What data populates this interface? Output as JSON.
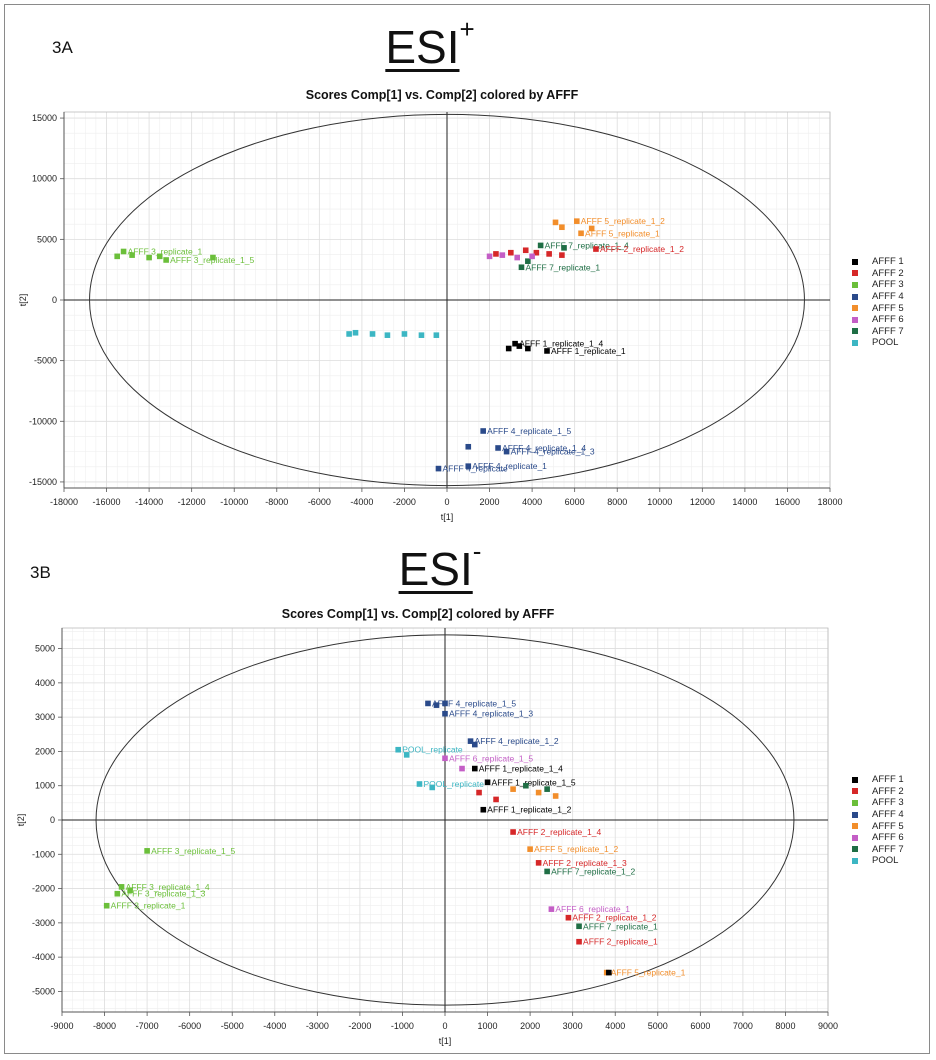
{
  "panels": [
    {
      "panel_label": "3A",
      "heading_main": "ESI",
      "heading_sup": "+",
      "legend": [
        {
          "label": "AFFF 1",
          "color": "#000000"
        },
        {
          "label": "AFFF 2",
          "color": "#d62728"
        },
        {
          "label": "AFFF 3",
          "color": "#6bbf3a"
        },
        {
          "label": "AFFF 4",
          "color": "#2a4a8a"
        },
        {
          "label": "AFFF 5",
          "color": "#f28e2b"
        },
        {
          "label": "AFFF 6",
          "color": "#c45ec6"
        },
        {
          "label": "AFFF 7",
          "color": "#1f6e45"
        },
        {
          "label": "POOL",
          "color": "#3cb6c3"
        }
      ]
    },
    {
      "panel_label": "3B",
      "heading_main": "ESI",
      "heading_sup": "-",
      "legend": [
        {
          "label": "AFFF 1",
          "color": "#000000"
        },
        {
          "label": "AFFF 2",
          "color": "#d62728"
        },
        {
          "label": "AFFF 3",
          "color": "#6bbf3a"
        },
        {
          "label": "AFFF 4",
          "color": "#2a4a8a"
        },
        {
          "label": "AFFF 5",
          "color": "#f28e2b"
        },
        {
          "label": "AFFF 6",
          "color": "#c45ec6"
        },
        {
          "label": "AFFF 7",
          "color": "#1f6e45"
        },
        {
          "label": "POOL",
          "color": "#3cb6c3"
        }
      ]
    }
  ],
  "chart_data": [
    {
      "type": "scatter",
      "title": "Scores Comp[1] vs. Comp[2] colored by AFFF",
      "xlabel": "t[1]",
      "ylabel": "t[2]",
      "xlim": [
        -18000,
        18000
      ],
      "ylim": [
        -15500,
        15500
      ],
      "xticks": [
        -18000,
        -16000,
        -14000,
        -12000,
        -10000,
        -8000,
        -6000,
        -4000,
        -2000,
        0,
        2000,
        4000,
        6000,
        8000,
        10000,
        12000,
        14000,
        16000,
        18000
      ],
      "yticks": [
        -15000,
        -10000,
        -5000,
        0,
        5000,
        10000,
        15000
      ],
      "ellipse": {
        "rx": 16800,
        "ry": 15300
      },
      "grid": true,
      "legend_position": "right",
      "points": [
        {
          "group": "AFFF 3",
          "x": -15200,
          "y": 4000,
          "label": "AFFF 3_replicate_1"
        },
        {
          "group": "AFFF 3",
          "x": -15500,
          "y": 3600,
          "label": ""
        },
        {
          "group": "AFFF 3",
          "x": -14800,
          "y": 3700,
          "label": ""
        },
        {
          "group": "AFFF 3",
          "x": -14000,
          "y": 3500,
          "label": ""
        },
        {
          "group": "AFFF 3",
          "x": -13500,
          "y": 3600,
          "label": ""
        },
        {
          "group": "AFFF 3",
          "x": -11000,
          "y": 3500,
          "label": ""
        },
        {
          "group": "AFFF 3",
          "x": -13200,
          "y": 3300,
          "label": "AFFF 3_replicate_1_5"
        },
        {
          "group": "POOL",
          "x": -4600,
          "y": -2800,
          "label": ""
        },
        {
          "group": "POOL",
          "x": -4300,
          "y": -2700,
          "label": ""
        },
        {
          "group": "POOL",
          "x": -3500,
          "y": -2800,
          "label": ""
        },
        {
          "group": "POOL",
          "x": -2800,
          "y": -2900,
          "label": ""
        },
        {
          "group": "POOL",
          "x": -2000,
          "y": -2800,
          "label": ""
        },
        {
          "group": "POOL",
          "x": -1200,
          "y": -2900,
          "label": ""
        },
        {
          "group": "POOL",
          "x": -500,
          "y": -2900,
          "label": ""
        },
        {
          "group": "AFFF 1",
          "x": 2900,
          "y": -4000,
          "label": ""
        },
        {
          "group": "AFFF 1",
          "x": 3200,
          "y": -3600,
          "label": "AFFF 1_replicate_1_4"
        },
        {
          "group": "AFFF 1",
          "x": 3400,
          "y": -3800,
          "label": ""
        },
        {
          "group": "AFFF 1",
          "x": 3800,
          "y": -4000,
          "label": ""
        },
        {
          "group": "AFFF 1",
          "x": 4700,
          "y": -4200,
          "label": "AFFF 1_replicate_1"
        },
        {
          "group": "AFFF 4",
          "x": 1700,
          "y": -10800,
          "label": "AFFF 4_replicate_1_5"
        },
        {
          "group": "AFFF 4",
          "x": 1000,
          "y": -12100,
          "label": ""
        },
        {
          "group": "AFFF 4",
          "x": 2400,
          "y": -12200,
          "label": "AFFF 4_replicate_1_4"
        },
        {
          "group": "AFFF 4",
          "x": 2800,
          "y": -12500,
          "label": "AFFF 4_replicate_1_3"
        },
        {
          "group": "AFFF 4",
          "x": 1000,
          "y": -13700,
          "label": "AFFF 4_replicate_1"
        },
        {
          "group": "AFFF 4",
          "x": -400,
          "y": -13900,
          "label": "AFFF 4_replicate"
        },
        {
          "group": "AFFF 5",
          "x": 5100,
          "y": 6400,
          "label": ""
        },
        {
          "group": "AFFF 5",
          "x": 6100,
          "y": 6500,
          "label": "AFFF 5_replicate_1_2"
        },
        {
          "group": "AFFF 5",
          "x": 5400,
          "y": 6000,
          "label": ""
        },
        {
          "group": "AFFF 5",
          "x": 6800,
          "y": 5900,
          "label": ""
        },
        {
          "group": "AFFF 5",
          "x": 6300,
          "y": 5500,
          "label": "AFFF 5_replicate_1"
        },
        {
          "group": "AFFF 7",
          "x": 4400,
          "y": 4500,
          "label": "AFFF 7_replicate_1_4"
        },
        {
          "group": "AFFF 7",
          "x": 5500,
          "y": 4300,
          "label": ""
        },
        {
          "group": "AFFF 7",
          "x": 3800,
          "y": 3200,
          "label": ""
        },
        {
          "group": "AFFF 7",
          "x": 3500,
          "y": 2700,
          "label": "AFFF 7_replicate_1"
        },
        {
          "group": "AFFF 2",
          "x": 2300,
          "y": 3800,
          "label": ""
        },
        {
          "group": "AFFF 2",
          "x": 3000,
          "y": 3900,
          "label": ""
        },
        {
          "group": "AFFF 2",
          "x": 3700,
          "y": 4100,
          "label": ""
        },
        {
          "group": "AFFF 2",
          "x": 4200,
          "y": 3900,
          "label": ""
        },
        {
          "group": "AFFF 2",
          "x": 4800,
          "y": 3800,
          "label": ""
        },
        {
          "group": "AFFF 2",
          "x": 5400,
          "y": 3700,
          "label": ""
        },
        {
          "group": "AFFF 2",
          "x": 7000,
          "y": 4200,
          "label": "AFFF 2_replicate_1_2"
        },
        {
          "group": "AFFF 6",
          "x": 2000,
          "y": 3600,
          "label": ""
        },
        {
          "group": "AFFF 6",
          "x": 2600,
          "y": 3700,
          "label": ""
        },
        {
          "group": "AFFF 6",
          "x": 3300,
          "y": 3500,
          "label": ""
        },
        {
          "group": "AFFF 6",
          "x": 4000,
          "y": 3600,
          "label": ""
        }
      ]
    },
    {
      "type": "scatter",
      "title": "Scores Comp[1] vs. Comp[2] colored by AFFF",
      "xlabel": "t[1]",
      "ylabel": "t[2]",
      "xlim": [
        -9000,
        9000
      ],
      "ylim": [
        -5600,
        5600
      ],
      "xticks": [
        -9000,
        -8000,
        -7000,
        -6000,
        -5000,
        -4000,
        -3000,
        -2000,
        -1000,
        0,
        1000,
        2000,
        3000,
        4000,
        5000,
        6000,
        7000,
        8000,
        9000
      ],
      "yticks": [
        -5000,
        -4000,
        -3000,
        -2000,
        -1000,
        0,
        1000,
        2000,
        3000,
        4000,
        5000
      ],
      "ellipse": {
        "rx": 8200,
        "ry": 5400
      },
      "grid": true,
      "legend_position": "right",
      "points": [
        {
          "group": "AFFF 3",
          "x": -7000,
          "y": -900,
          "label": "AFFF 3_replicate_1_5"
        },
        {
          "group": "AFFF 3",
          "x": -7600,
          "y": -1950,
          "label": "AFFF 3_replicate_1_4"
        },
        {
          "group": "AFFF 3",
          "x": -7400,
          "y": -2050,
          "label": ""
        },
        {
          "group": "AFFF 3",
          "x": -7700,
          "y": -2150,
          "label": "AFFF 3_replicate_1_3"
        },
        {
          "group": "AFFF 3",
          "x": -7950,
          "y": -2500,
          "label": "AFFF 3_replicate_1"
        },
        {
          "group": "AFFF 4",
          "x": -400,
          "y": 3400,
          "label": "AFFF 4_replicate_1_5"
        },
        {
          "group": "AFFF 4",
          "x": -200,
          "y": 3350,
          "label": ""
        },
        {
          "group": "AFFF 4",
          "x": 0,
          "y": 3400,
          "label": ""
        },
        {
          "group": "AFFF 4",
          "x": 0,
          "y": 3100,
          "label": "AFFF 4_replicate_1_3"
        },
        {
          "group": "AFFF 4",
          "x": 600,
          "y": 2300,
          "label": "AFFF 4_replicate_1_2"
        },
        {
          "group": "AFFF 4",
          "x": 700,
          "y": 2200,
          "label": ""
        },
        {
          "group": "POOL",
          "x": -1100,
          "y": 2050,
          "label": "POOL_replicate"
        },
        {
          "group": "POOL",
          "x": -900,
          "y": 1900,
          "label": ""
        },
        {
          "group": "POOL",
          "x": -600,
          "y": 1050,
          "label": "POOL_replicate"
        },
        {
          "group": "POOL",
          "x": -300,
          "y": 950,
          "label": ""
        },
        {
          "group": "AFFF 6",
          "x": 0,
          "y": 1800,
          "label": "AFFF 6_replicate_1_5"
        },
        {
          "group": "AFFF 6",
          "x": 400,
          "y": 1500,
          "label": ""
        },
        {
          "group": "AFFF 1",
          "x": 700,
          "y": 1500,
          "label": "AFFF 1_replicate_1_4"
        },
        {
          "group": "AFFF 1",
          "x": 1000,
          "y": 1100,
          "label": "AFFF 1_replicate_1_5"
        },
        {
          "group": "AFFF 1",
          "x": 900,
          "y": 300,
          "label": "AFFF 1_replicate_1_2"
        },
        {
          "group": "AFFF 5",
          "x": 1600,
          "y": 900,
          "label": ""
        },
        {
          "group": "AFFF 5",
          "x": 2200,
          "y": 800,
          "label": ""
        },
        {
          "group": "AFFF 5",
          "x": 2600,
          "y": 700,
          "label": ""
        },
        {
          "group": "AFFF 7",
          "x": 1900,
          "y": 1000,
          "label": ""
        },
        {
          "group": "AFFF 7",
          "x": 2400,
          "y": 900,
          "label": ""
        },
        {
          "group": "AFFF 2",
          "x": 800,
          "y": 800,
          "label": ""
        },
        {
          "group": "AFFF 2",
          "x": 1200,
          "y": 600,
          "label": ""
        },
        {
          "group": "AFFF 2",
          "x": 1600,
          "y": -350,
          "label": "AFFF 2_replicate_1_4"
        },
        {
          "group": "AFFF 5",
          "x": 2000,
          "y": -850,
          "label": "AFFF 5_replicate_1_2"
        },
        {
          "group": "AFFF 2",
          "x": 2200,
          "y": -1250,
          "label": "AFFF 2_replicate_1_3"
        },
        {
          "group": "AFFF 7",
          "x": 2400,
          "y": -1500,
          "label": "AFFF 7_replicate_1_2"
        },
        {
          "group": "AFFF 6",
          "x": 2500,
          "y": -2600,
          "label": "AFFF 6_replicate_1"
        },
        {
          "group": "AFFF 2",
          "x": 2900,
          "y": -2850,
          "label": "AFFF 2_replicate_1_2"
        },
        {
          "group": "AFFF 7",
          "x": 3150,
          "y": -3100,
          "label": "AFFF 7_replicate_1"
        },
        {
          "group": "AFFF 2",
          "x": 3150,
          "y": -3550,
          "label": "AFFF 2_replicate_1"
        },
        {
          "group": "AFFF 5",
          "x": 3800,
          "y": -4450,
          "label": "AFFF 5_replicate_1"
        },
        {
          "group": "AFFF 1",
          "x": 3850,
          "y": -4450,
          "label": ""
        }
      ]
    }
  ]
}
